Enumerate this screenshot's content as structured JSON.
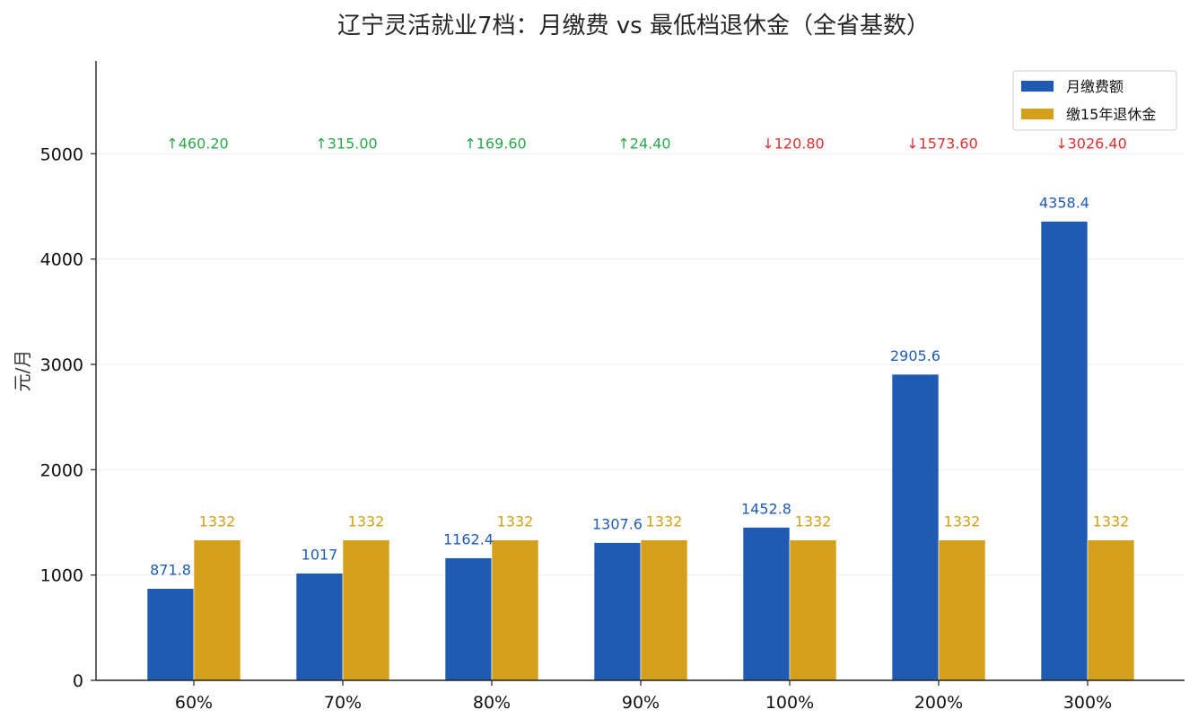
{
  "chart_data": {
    "type": "bar",
    "title": "辽宁灵活就业7档：月缴费 vs 最低档退休金（全省基数）",
    "xlabel": "",
    "ylabel": "元/月",
    "categories": [
      "60%",
      "70%",
      "80%",
      "90%",
      "100%",
      "200%",
      "300%"
    ],
    "series": [
      {
        "name": "月缴费额",
        "color": "#1f5bb3",
        "values": [
          871.8,
          1017,
          1162.4,
          1307.6,
          1452.8,
          2905.6,
          4358.4
        ],
        "value_labels": [
          "871.8",
          "1017",
          "1162.4",
          "1307.6",
          "1452.8",
          "2905.6",
          "4358.4"
        ]
      },
      {
        "name": "缴15年退休金",
        "color": "#d4a01c",
        "values": [
          1332,
          1332,
          1332,
          1332,
          1332,
          1332,
          1332
        ],
        "value_labels": [
          "1332",
          "1332",
          "1332",
          "1332",
          "1332",
          "1332",
          "1332"
        ]
      }
    ],
    "annotations": [
      {
        "text": "↑460.20",
        "color": "#2aa84a"
      },
      {
        "text": "↑315.00",
        "color": "#2aa84a"
      },
      {
        "text": "↑169.60",
        "color": "#2aa84a"
      },
      {
        "text": "↑24.40",
        "color": "#2aa84a"
      },
      {
        "text": "↓120.80",
        "color": "#d93030"
      },
      {
        "text": "↓1573.60",
        "color": "#d93030"
      },
      {
        "text": "↓3026.40",
        "color": "#d93030"
      }
    ],
    "annotation_level": 5100,
    "y_ticks": [
      "0",
      "1000",
      "2000",
      "3000",
      "4000",
      "5000"
    ],
    "y_tick_values": [
      0,
      1000,
      2000,
      3000,
      4000,
      5000
    ],
    "ylim": [
      0,
      5880
    ],
    "grid": "horizontal",
    "legend_position": "top-right"
  }
}
